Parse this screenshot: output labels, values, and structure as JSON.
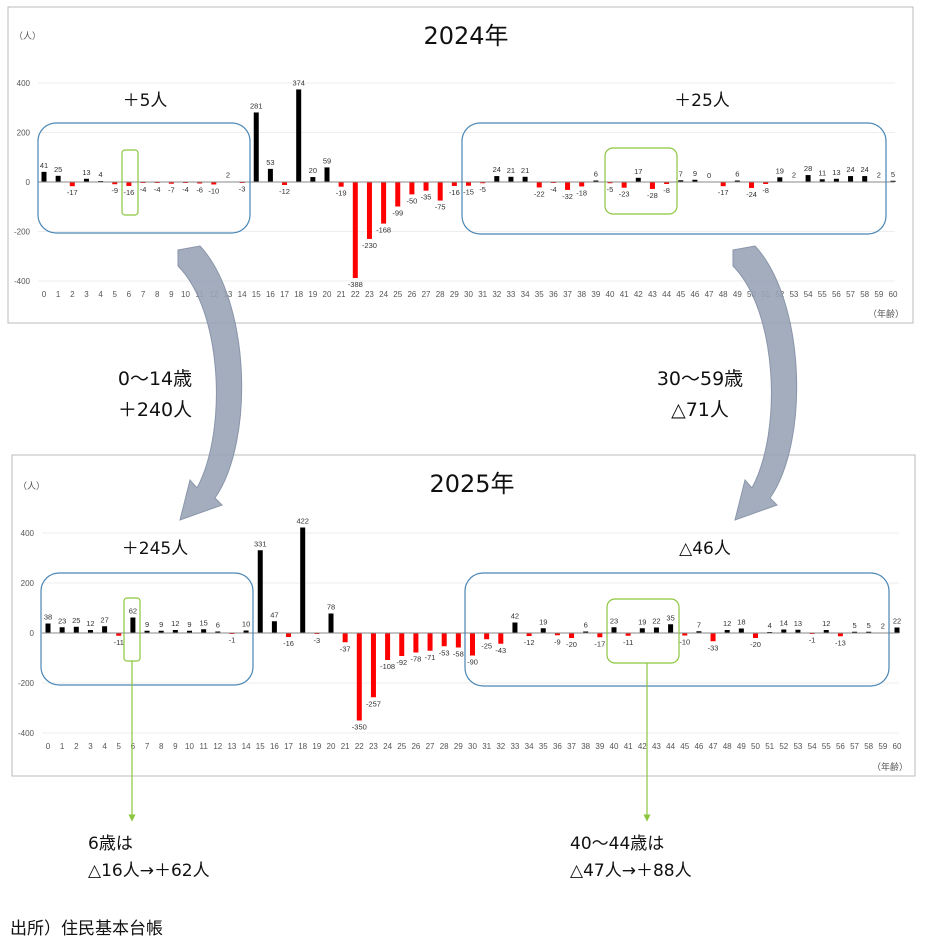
{
  "colors": {
    "positive": "#000000",
    "negative": "#ff0000",
    "group_box": "#4a86b4",
    "highlight_box": "#8cc63f",
    "arrow": "#9aa5b8"
  },
  "chart_data": [
    {
      "type": "bar",
      "title": "2024年",
      "ylabel": "（人）",
      "xlabel": "（年齢）",
      "ylim": [
        -400,
        400
      ],
      "yticks": [
        400,
        200,
        0,
        -200,
        -400
      ],
      "grid": true,
      "categories": [
        0,
        1,
        2,
        3,
        4,
        5,
        6,
        7,
        8,
        9,
        10,
        11,
        12,
        13,
        14,
        15,
        16,
        17,
        18,
        19,
        20,
        21,
        22,
        23,
        24,
        25,
        26,
        27,
        28,
        29,
        30,
        31,
        32,
        33,
        34,
        35,
        36,
        37,
        38,
        39,
        40,
        41,
        42,
        43,
        44,
        45,
        46,
        47,
        48,
        49,
        50,
        51,
        52,
        53,
        54,
        55,
        56,
        57,
        58,
        59,
        60
      ],
      "values": [
        41,
        25,
        -17,
        13,
        4,
        -9,
        -16,
        -4,
        -4,
        -7,
        -4,
        -6,
        -10,
        2,
        -3,
        281,
        53,
        -12,
        374,
        20,
        59,
        -19,
        -388,
        -230,
        -168,
        -99,
        -50,
        -35,
        -75,
        -16,
        -15,
        -5,
        24,
        21,
        21,
        -22,
        -4,
        -32,
        -18,
        6,
        -5,
        -23,
        17,
        -28,
        -8,
        7,
        9,
        0,
        -17,
        6,
        -24,
        -8,
        19,
        2,
        28,
        11,
        13,
        24,
        24,
        2,
        5
      ],
      "annotations": {
        "left_group": "＋5人",
        "right_group": "＋25人"
      }
    },
    {
      "type": "bar",
      "title": "2025年",
      "ylabel": "（人）",
      "xlabel": "（年齢）",
      "ylim": [
        -400,
        400
      ],
      "yticks": [
        400,
        200,
        0,
        -200,
        -400
      ],
      "grid": true,
      "categories": [
        0,
        1,
        2,
        3,
        4,
        5,
        6,
        7,
        8,
        9,
        10,
        11,
        12,
        13,
        14,
        15,
        16,
        17,
        18,
        19,
        20,
        21,
        22,
        23,
        24,
        25,
        26,
        27,
        28,
        29,
        30,
        31,
        32,
        33,
        34,
        35,
        36,
        37,
        38,
        39,
        40,
        41,
        42,
        43,
        44,
        45,
        46,
        47,
        48,
        49,
        50,
        51,
        52,
        53,
        54,
        55,
        56,
        57,
        58,
        59,
        60
      ],
      "values": [
        38,
        23,
        25,
        12,
        27,
        -11,
        62,
        9,
        9,
        12,
        9,
        15,
        6,
        -1,
        10,
        331,
        47,
        -16,
        422,
        -3,
        78,
        -37,
        -350,
        -257,
        -108,
        -92,
        -78,
        -71,
        -53,
        -58,
        -90,
        -25,
        -43,
        42,
        -12,
        19,
        -9,
        -20,
        6,
        -17,
        23,
        -11,
        19,
        22,
        35,
        -10,
        7,
        -33,
        12,
        18,
        -20,
        4,
        14,
        13,
        -1,
        12,
        -13,
        5,
        5,
        2,
        22
      ],
      "annotations": {
        "left_group": "＋245人",
        "right_group": "△46人"
      }
    }
  ],
  "callouts": {
    "left_change_line1": "0〜14歳",
    "left_change_line2": "＋240人",
    "right_change_line1": "30〜59歳",
    "right_change_line2": "△71人",
    "age6_line1": "6歳は",
    "age6_line2": "△16人→＋62人",
    "age40_line1": "40〜44歳は",
    "age40_line2": "△47人→＋88人"
  },
  "source": "出所）住民基本台帳"
}
